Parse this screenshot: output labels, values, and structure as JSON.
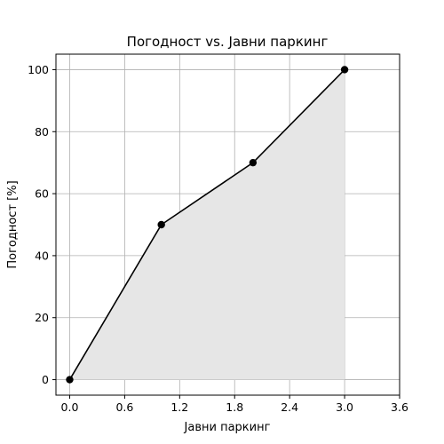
{
  "chart_data": {
    "type": "area",
    "title": "Погодност vs. Јавни паркинг",
    "xlabel": "Јавни паркинг",
    "ylabel": "Погодност [%]",
    "x": [
      0,
      1,
      2,
      3
    ],
    "series": [
      {
        "values": [
          0,
          50,
          70,
          100
        ],
        "color": "#000000",
        "fill": "#e6e6e6",
        "marker": "circle"
      }
    ],
    "xlim": [
      -0.15,
      3.6
    ],
    "ylim": [
      -5,
      105
    ],
    "xticks": [
      0.0,
      0.6,
      1.2,
      1.8,
      2.4,
      3.0,
      3.6
    ],
    "xtick_labels": [
      "0.0",
      "0.6",
      "1.2",
      "1.8",
      "2.4",
      "3.0",
      "3.6"
    ],
    "yticks": [
      0,
      20,
      40,
      60,
      80,
      100
    ],
    "ytick_labels": [
      "0",
      "20",
      "40",
      "60",
      "80",
      "100"
    ],
    "grid": true,
    "colors": {
      "line": "#000000",
      "fill": "#e6e6e6",
      "grid": "#b0b0b0",
      "axes": "#000000"
    }
  }
}
